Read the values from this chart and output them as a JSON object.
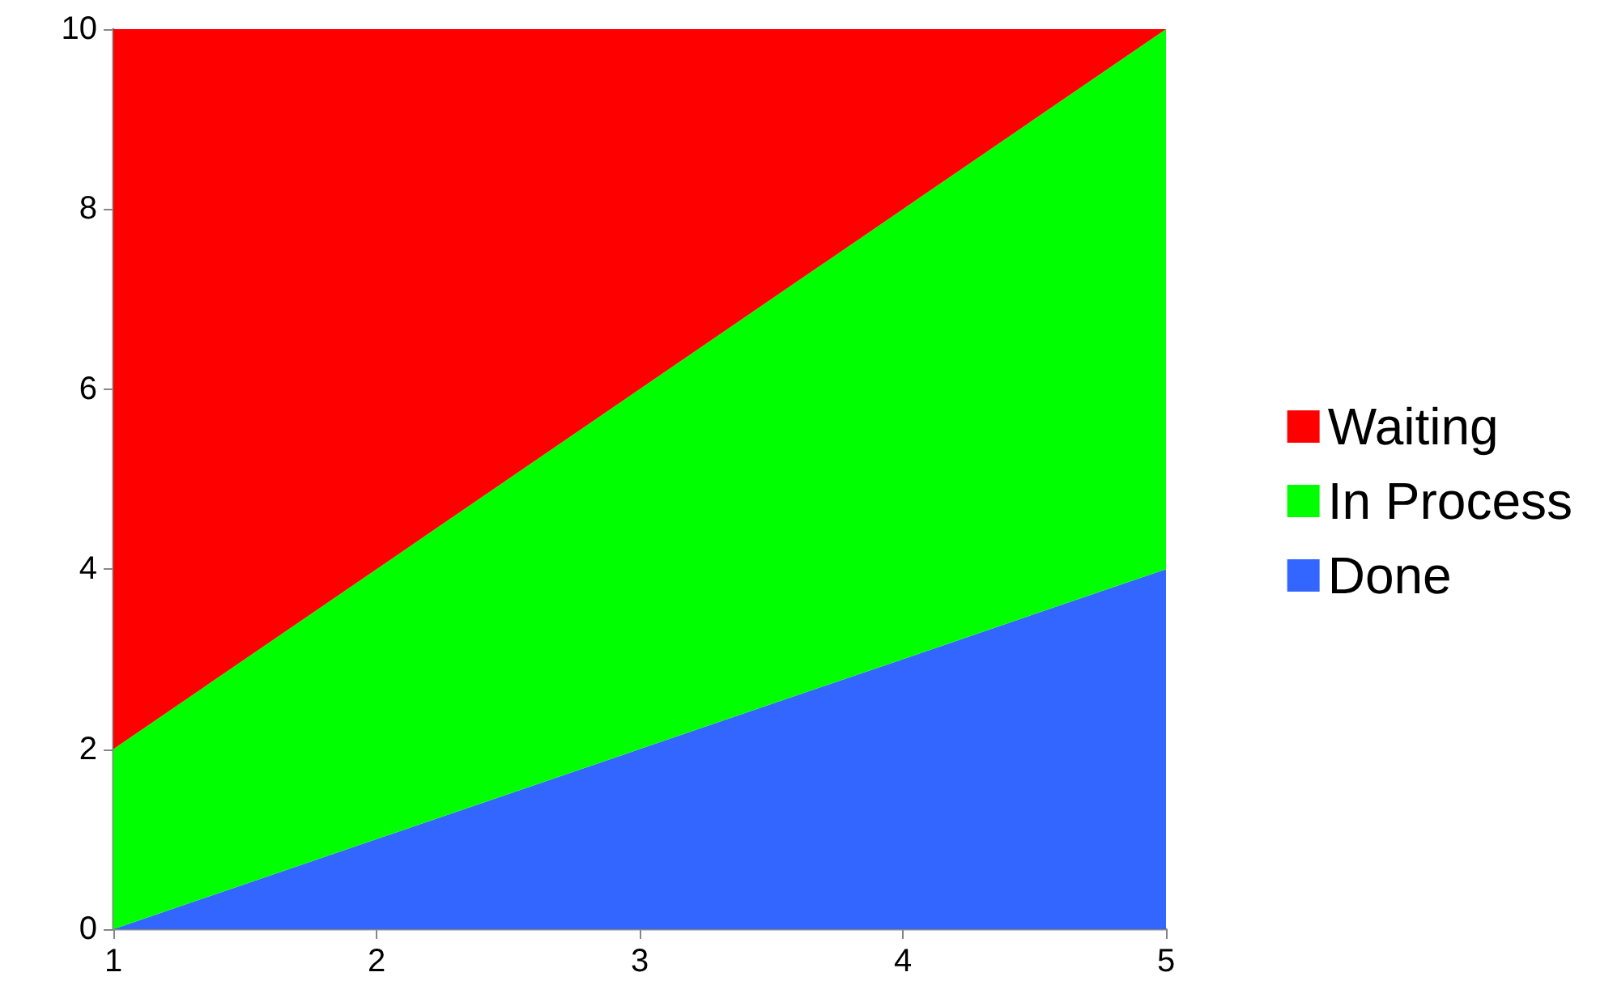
{
  "chart_data": {
    "type": "area",
    "stacked": true,
    "x": [
      1,
      2,
      3,
      4,
      5
    ],
    "xlim": [
      1,
      5
    ],
    "xticks": [
      1,
      2,
      3,
      4,
      5
    ],
    "ylim": [
      0,
      10
    ],
    "yticks": [
      0,
      2,
      4,
      6,
      8,
      10
    ],
    "grid": false,
    "legend": "right",
    "series": [
      {
        "name": "Done",
        "color": "#3366ff",
        "values": [
          0,
          1,
          2,
          3,
          4
        ]
      },
      {
        "name": "In Process",
        "color": "#00ff00",
        "values": [
          2,
          3,
          4,
          5,
          6
        ]
      },
      {
        "name": "Waiting",
        "color": "#ff0000",
        "values": [
          8,
          6,
          4,
          2,
          0
        ]
      }
    ]
  }
}
